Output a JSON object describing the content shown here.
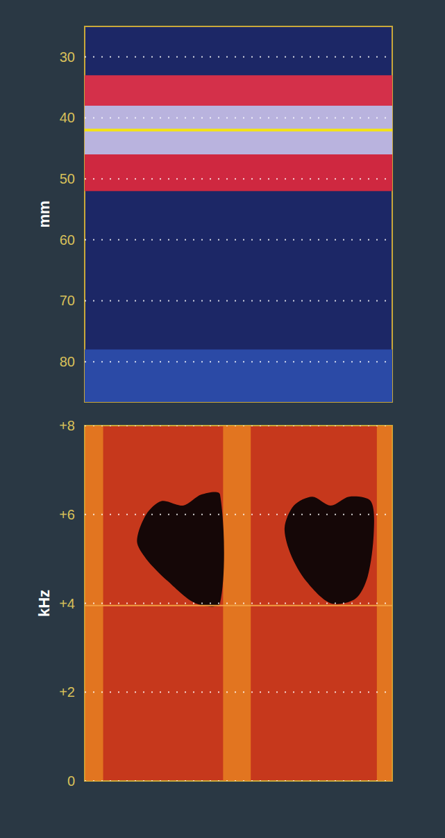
{
  "chart_data": [
    {
      "type": "m_mode",
      "ylabel": "mm",
      "xlim": [
        0,
        100
      ],
      "ylim": [
        25,
        86.6
      ],
      "yticks": [
        30,
        40,
        50,
        60,
        70,
        80
      ],
      "tick_labels": "y",
      "grid": true,
      "color": "#1c2766",
      "bands": [
        {
          "from": 33,
          "to": 38,
          "color": "#d4304a"
        },
        {
          "from": 38,
          "to": 46,
          "color": "#b9b3de"
        },
        {
          "from": 46,
          "to": 52,
          "color": "#cf2840"
        },
        {
          "from": 78,
          "to": 86.6,
          "color": "#2b4aa6"
        }
      ],
      "cursor": {
        "value": 42,
        "color": "#f2e21a"
      }
    },
    {
      "type": "spectral_doppler",
      "ylabel": "kHz",
      "xlim": [
        0,
        100
      ],
      "ylim": [
        0,
        8
      ],
      "yticks": [
        {
          "value": 0,
          "label": "0"
        },
        {
          "value": 2,
          "label": "+2"
        },
        {
          "value": 4,
          "label": "+4"
        },
        {
          "value": 6,
          "label": "+6"
        },
        {
          "value": 8,
          "label": "+8"
        }
      ],
      "tick_labels": "y",
      "grid": true,
      "color": "#c6381c",
      "bright_bands": [
        {
          "from": 0,
          "to": 6,
          "color": "#eb8a22"
        },
        {
          "from": 45,
          "to": 54,
          "color": "#eb8a22"
        },
        {
          "from": 95,
          "to": 100,
          "color": "#eb8a22"
        }
      ],
      "baseline": {
        "value": 3.95,
        "color": "#f3a040"
      },
      "dark_regions": {
        "color": "#150707",
        "shapes": [
          [
            [
              17,
              5.4
            ],
            [
              20,
              6.0
            ],
            [
              25,
              6.3
            ],
            [
              32,
              6.2
            ],
            [
              38,
              6.45
            ],
            [
              44,
              6.45
            ],
            [
              44,
              4.0
            ],
            [
              36,
              4.0
            ],
            [
              27,
              4.5
            ],
            [
              20,
              5.0
            ]
          ],
          [
            [
              65,
              5.7
            ],
            [
              68,
              6.2
            ],
            [
              74,
              6.4
            ],
            [
              80,
              6.2
            ],
            [
              86,
              6.4
            ],
            [
              93,
              6.3
            ],
            [
              94,
              5.6
            ],
            [
              92,
              4.6
            ],
            [
              88,
              4.1
            ],
            [
              80,
              4.0
            ],
            [
              72,
              4.5
            ],
            [
              67,
              5.1
            ]
          ]
        ]
      }
    }
  ]
}
